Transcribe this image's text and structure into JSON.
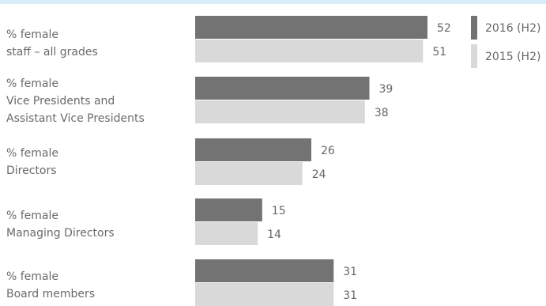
{
  "chart_data": {
    "type": "bar",
    "orientation": "horizontal",
    "categories": [
      [
        "% female",
        "staff – all grades"
      ],
      [
        "% female",
        "Vice Presidents and",
        "Assistant Vice Presidents"
      ],
      [
        "% female",
        "Directors"
      ],
      [
        "% female",
        "Managing Directors"
      ],
      [
        "% female",
        "Board members"
      ]
    ],
    "series": [
      {
        "name": "2016 (H2)",
        "values": [
          52,
          39,
          26,
          15,
          31
        ]
      },
      {
        "name": "2015 (H2)",
        "values": [
          51,
          38,
          24,
          14,
          31
        ]
      }
    ],
    "colors": {
      "2016 (H2)": "#737373",
      "2015 (H2)": "#d9d9d9"
    },
    "xlim": [
      0,
      60
    ],
    "grid": false,
    "legend_position": "top-right",
    "data_labels": true
  }
}
